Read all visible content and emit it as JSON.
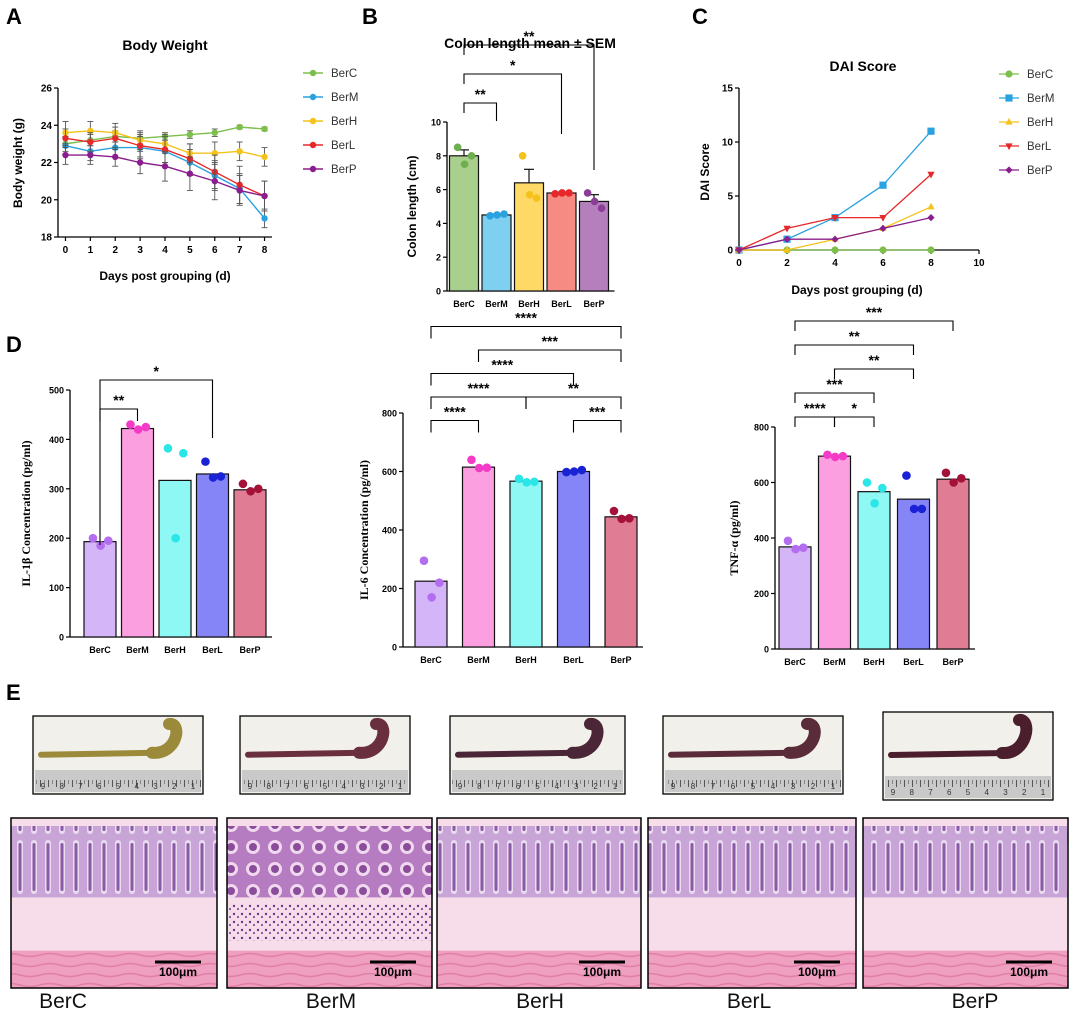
{
  "panels": {
    "A": "A",
    "B": "B",
    "C": "C",
    "D": "D",
    "E": "E"
  },
  "groups": [
    "BerC",
    "BerM",
    "BerH",
    "BerL",
    "BerP"
  ],
  "colors": {
    "line": {
      "BerC": "#7cbf4a",
      "BerM": "#2aa2e0",
      "BerH": "#f4c21a",
      "BerL": "#e7282b",
      "BerP": "#8a1e8e"
    },
    "colon": {
      "BerC": "#a8cf8b",
      "BerM": "#7fd0f0",
      "BerH": "#ffd966",
      "BerL": "#f58b83",
      "BerP": "#b57fbd"
    },
    "colonDots": {
      "BerC": "#6fae4e",
      "BerM": "#2aa2e0",
      "BerH": "#f4c21a",
      "BerL": "#e7282b",
      "BerP": "#8a3e95"
    },
    "cyto": {
      "BerC": "#d4b5f7",
      "BerM": "#fb9fe0",
      "BerH": "#8ef8f4",
      "BerL": "#8585f8",
      "BerP": "#e07d95"
    },
    "cytoDots": {
      "BerC": "#b36ef0",
      "BerM": "#f43bc8",
      "BerH": "#2ae6e6",
      "BerL": "#1a22d6",
      "BerP": "#a4123a"
    }
  },
  "chart_data": [
    {
      "id": "body-weight",
      "type": "line",
      "title": "Body Weight",
      "xlabel": "Days post grouping (d)",
      "ylabel": "Body weight (g)",
      "x": [
        0,
        1,
        2,
        3,
        4,
        5,
        6,
        7,
        8
      ],
      "xlim": [
        -0.3,
        8.3
      ],
      "ylim": [
        18,
        26
      ],
      "xticks": [
        "0",
        "1",
        "2",
        "3",
        "4",
        "5",
        "6",
        "7",
        "8"
      ],
      "yticks": [
        "18",
        "20",
        "22",
        "24",
        "26"
      ],
      "legend_position": "right",
      "series": [
        {
          "name": "BerC",
          "values": [
            23.0,
            23.2,
            23.4,
            23.3,
            23.4,
            23.5,
            23.6,
            23.9,
            23.8
          ],
          "err": [
            0.4,
            0.3,
            0.3,
            0.3,
            0.2,
            0.2,
            0.2,
            0.1,
            0.1
          ]
        },
        {
          "name": "BerM",
          "values": [
            22.9,
            22.6,
            22.8,
            22.8,
            22.6,
            22.0,
            21.3,
            20.6,
            19.0
          ],
          "err": [
            0.5,
            0.5,
            0.5,
            0.6,
            0.6,
            0.7,
            0.8,
            0.8,
            0.5
          ]
        },
        {
          "name": "BerH",
          "values": [
            23.6,
            23.7,
            23.6,
            23.2,
            23.0,
            22.5,
            22.5,
            22.6,
            22.3
          ],
          "err": [
            0.6,
            0.5,
            0.5,
            0.5,
            0.5,
            0.5,
            0.6,
            0.5,
            0.5
          ]
        },
        {
          "name": "BerL",
          "values": [
            23.3,
            23.1,
            23.3,
            22.9,
            22.7,
            22.2,
            21.5,
            20.8,
            20.2
          ],
          "err": [
            0.5,
            0.5,
            0.6,
            0.6,
            0.7,
            0.8,
            0.9,
            1.0,
            0.8
          ]
        },
        {
          "name": "BerP",
          "values": [
            22.4,
            22.4,
            22.3,
            22.0,
            21.8,
            21.4,
            21.0,
            20.5,
            20.2
          ],
          "err": [
            0.5,
            0.5,
            0.5,
            0.6,
            0.8,
            0.9,
            1.0,
            0.8,
            0.8
          ]
        }
      ]
    },
    {
      "id": "colon-length",
      "type": "bar",
      "title": "Colon length  mean ± SEM",
      "ylabel": "Colon length (cm)",
      "categories": [
        "BerC",
        "BerM",
        "BerH",
        "BerL",
        "BerP"
      ],
      "values": [
        8.0,
        4.5,
        6.4,
        5.8,
        5.3
      ],
      "sem": [
        0.35,
        0.05,
        0.8,
        0.05,
        0.4
      ],
      "points": [
        [
          8.5,
          7.5,
          8.0
        ],
        [
          4.45,
          4.5,
          4.55
        ],
        [
          8.0,
          5.7,
          5.5
        ],
        [
          5.75,
          5.8,
          5.8
        ],
        [
          5.8,
          5.3,
          4.9
        ]
      ],
      "ylim": [
        0,
        10
      ],
      "yticks": [
        "0",
        "2",
        "4",
        "6",
        "8",
        "10"
      ],
      "significance": [
        {
          "a": 0,
          "b": 4,
          "label": "**",
          "level": 3
        },
        {
          "a": 0,
          "b": 3,
          "label": "*",
          "level": 2
        },
        {
          "a": 0,
          "b": 1,
          "label": "**",
          "level": 1
        }
      ]
    },
    {
      "id": "dai-score",
      "type": "line",
      "title": "DAI Score",
      "xlabel": "Days post grouping (d)",
      "ylabel": "DAI Score",
      "x": [
        0,
        2,
        4,
        6,
        8
      ],
      "xlim": [
        0,
        10
      ],
      "ylim": [
        0,
        15
      ],
      "xticks": [
        "0",
        "2",
        "4",
        "6",
        "8",
        "10"
      ],
      "yticks": [
        "0",
        "5",
        "10",
        "15"
      ],
      "legend_position": "right",
      "series": [
        {
          "name": "BerC",
          "values": [
            0,
            0,
            0,
            0,
            0
          ],
          "marker": "circle"
        },
        {
          "name": "BerM",
          "values": [
            0,
            1,
            3,
            6,
            11
          ],
          "marker": "square"
        },
        {
          "name": "BerH",
          "values": [
            0,
            0,
            1,
            2,
            4
          ],
          "marker": "triangle-up"
        },
        {
          "name": "BerL",
          "values": [
            0,
            2,
            3,
            3,
            7
          ],
          "marker": "triangle-down"
        },
        {
          "name": "BerP",
          "values": [
            0,
            1,
            1,
            2,
            3
          ],
          "marker": "diamond"
        }
      ]
    },
    {
      "id": "il1b",
      "type": "bar",
      "ylabel": "IL-1β Concentration (pg/ml)",
      "categories": [
        "BerC",
        "BerM",
        "BerH",
        "BerL",
        "BerP"
      ],
      "values": [
        193,
        422,
        317,
        330,
        298
      ],
      "points": [
        [
          200,
          185,
          195
        ],
        [
          430,
          420,
          425
        ],
        [
          382,
          200,
          372
        ],
        [
          355,
          323,
          325
        ],
        [
          310,
          295,
          300
        ]
      ],
      "ylim": [
        0,
        500
      ],
      "yticks": [
        "0",
        "100",
        "200",
        "300",
        "400",
        "500"
      ],
      "significance": [
        {
          "a": 0,
          "b": 3,
          "label": "*",
          "level": 2
        },
        {
          "a": 0,
          "b": 1,
          "label": "**",
          "level": 1
        }
      ]
    },
    {
      "id": "il6",
      "type": "bar",
      "ylabel": "IL-6 Concentration (pg/ml)",
      "categories": [
        "BerC",
        "BerM",
        "BerH",
        "BerL",
        "BerP"
      ],
      "values": [
        225,
        615,
        567,
        600,
        445
      ],
      "points": [
        [
          295,
          170,
          220
        ],
        [
          640,
          612,
          613
        ],
        [
          575,
          563,
          565
        ],
        [
          598,
          600,
          605
        ],
        [
          465,
          438,
          440
        ]
      ],
      "ylim": [
        0,
        800
      ],
      "yticks": [
        "0",
        "200",
        "400",
        "600",
        "800"
      ],
      "significance": [
        {
          "a": 0,
          "b": 4,
          "label": "****",
          "level": 6
        },
        {
          "a": 1,
          "b": 4,
          "label": "***",
          "level": 5
        },
        {
          "a": 0,
          "b": 3,
          "label": "****",
          "level": 4
        },
        {
          "a": 0,
          "b": 2,
          "label": "****",
          "level": 3,
          "sharedWith": "brk-2-4"
        },
        {
          "a": 2,
          "b": 4,
          "label": "**",
          "level": 3
        },
        {
          "a": 0,
          "b": 1,
          "label": "****",
          "level": 2
        },
        {
          "a": 3,
          "b": 4,
          "label": "***",
          "level": 2
        }
      ]
    },
    {
      "id": "tnfa",
      "type": "bar",
      "ylabel": "TNF-α  (pg/ml)",
      "categories": [
        "BerC",
        "BerM",
        "BerH",
        "BerL",
        "BerP"
      ],
      "values": [
        368,
        695,
        567,
        540,
        612
      ],
      "points": [
        [
          390,
          360,
          365
        ],
        [
          700,
          692,
          695
        ],
        [
          600,
          525,
          580
        ],
        [
          625,
          505,
          505
        ],
        [
          635,
          600,
          615
        ]
      ],
      "ylim": [
        0,
        800
      ],
      "yticks": [
        "0",
        "200",
        "400",
        "600",
        "800"
      ],
      "significance": [
        {
          "a": 0,
          "b": 4,
          "label": "***",
          "level": 6
        },
        {
          "a": 0,
          "b": 3,
          "label": "**",
          "level": 5
        },
        {
          "a": 1,
          "b": 3,
          "label": "**",
          "level": 4
        },
        {
          "a": 0,
          "b": 2,
          "label": "***",
          "level": 3
        },
        {
          "a": 0,
          "b": 1,
          "label": "****",
          "level": 2
        },
        {
          "a": 1,
          "b": 2,
          "label": "*",
          "level": 2
        }
      ]
    }
  ],
  "panelE": {
    "scale_label": "100μm",
    "ruler_marks": [
      "9",
      "8",
      "7",
      "6",
      "5",
      "4",
      "3",
      "2",
      "1"
    ],
    "captions": [
      "BerC",
      "BerM",
      "BerH",
      "BerL",
      "BerP"
    ]
  }
}
